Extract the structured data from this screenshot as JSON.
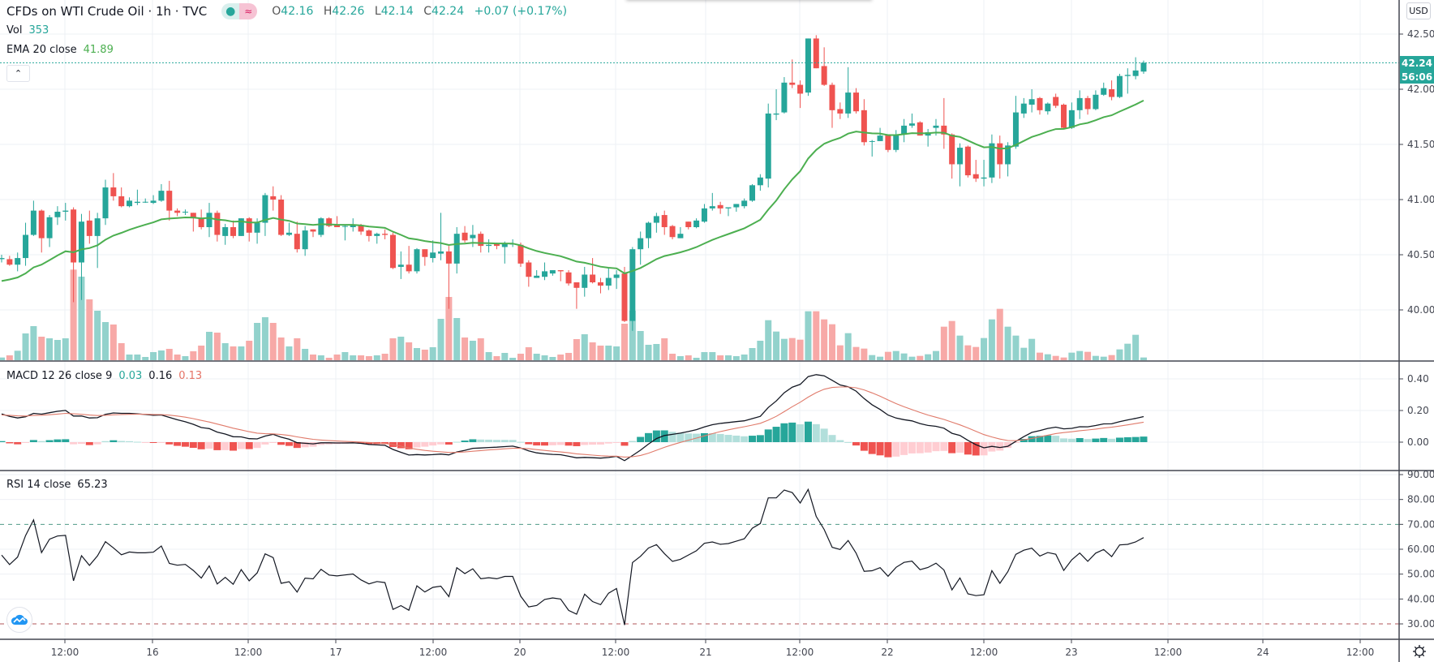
{
  "header": {
    "title": "CFDs on WTI Crude Oil · 1h · TVC",
    "open_label": "O",
    "open": "42.16",
    "high_label": "H",
    "high": "42.26",
    "low_label": "L",
    "low": "42.14",
    "close_label": "C",
    "close": "42.24",
    "change": "+0.07 (+0.17%)"
  },
  "legends": {
    "vol_label": "Vol",
    "vol_value": "353",
    "ema_label": "EMA 20 close",
    "ema_value": "41.89",
    "macd_label": "MACD 12 26 close 9",
    "macd_hist": "0.03",
    "macd_line": "0.16",
    "macd_signal": "0.13",
    "rsi_label": "RSI 14 close",
    "rsi_value": "65.23"
  },
  "price_axis": {
    "currency": "USD",
    "last_price": "42.24",
    "countdown": "56:06"
  },
  "icons": {
    "collapse": "chevron-up-icon",
    "logo": "tradingview-cloud-icon",
    "settings": "gear-icon"
  },
  "colors": {
    "up": "#26a69a",
    "down": "#ef5350",
    "up_vol": "#92d2cc",
    "down_vol": "#f7a9a7",
    "ema": "#4caf50",
    "macd": "#131722",
    "signal": "#e07a6a",
    "rsi": "#131722"
  },
  "chart_data": {
    "type": "candlestick",
    "title": "CFDs on WTI Crude Oil · 1h · TVC",
    "price_ticks": [
      "42.50",
      "42.00",
      "41.50",
      "41.00",
      "40.50",
      "40.00"
    ],
    "macd_ticks": [
      "0.40",
      "0.20",
      "0.00"
    ],
    "rsi_ticks": [
      "90.00",
      "80.00",
      "70.00",
      "60.00",
      "50.00",
      "40.00",
      "30.00"
    ],
    "rsi_bands": [
      70,
      30
    ],
    "time_ticks": [
      "12:00",
      "16",
      "12:00",
      "17",
      "12:00",
      "20",
      "12:00",
      "21",
      "12:00",
      "22",
      "12:00",
      "23",
      "12:00",
      "24",
      "12:00"
    ],
    "ylim": [
      39.73,
      42.81
    ],
    "indicator_seeds": {
      "ema20": 40.24,
      "ema12": 40.44,
      "ema26": 40.25,
      "signal": 0.17,
      "rsi_avg_gain": 0.04,
      "rsi_avg_loss": 0.03
    },
    "candles_ohlcv": [
      [
        40.46,
        40.5,
        40.43,
        40.47,
        350
      ],
      [
        40.46,
        40.49,
        40.4,
        40.41,
        630
      ],
      [
        40.41,
        40.52,
        40.35,
        40.47,
        1225
      ],
      [
        40.47,
        40.79,
        40.4,
        40.68,
        3465
      ],
      [
        40.68,
        40.99,
        40.67,
        40.9,
        4410
      ],
      [
        40.9,
        40.91,
        40.52,
        40.65,
        3045
      ],
      [
        40.65,
        40.86,
        40.57,
        40.84,
        2835
      ],
      [
        40.84,
        40.94,
        40.77,
        40.89,
        2625
      ],
      [
        40.89,
        40.97,
        40.81,
        40.9,
        2835
      ],
      [
        40.91,
        40.93,
        40.07,
        40.43,
        11725
      ],
      [
        40.43,
        40.87,
        40.09,
        40.8,
        10815
      ],
      [
        40.81,
        40.9,
        40.6,
        40.67,
        7875
      ],
      [
        40.67,
        40.88,
        40.38,
        40.83,
        6405
      ],
      [
        40.83,
        41.18,
        40.77,
        41.11,
        4935
      ],
      [
        41.11,
        41.24,
        40.99,
        41.03,
        4620
      ],
      [
        41.03,
        41.11,
        40.93,
        40.94,
        2205
      ],
      [
        40.94,
        41.02,
        40.93,
        40.99,
        735
      ],
      [
        40.97,
        41.09,
        40.95,
        40.98,
        735
      ],
      [
        40.98,
        41.01,
        40.97,
        40.98,
        420
      ],
      [
        40.97,
        41.04,
        40.96,
        40.99,
        1050
      ],
      [
        40.99,
        41.14,
        40.98,
        41.08,
        1260
      ],
      [
        41.08,
        41.17,
        40.81,
        40.9,
        1470
      ],
      [
        40.9,
        40.92,
        40.85,
        40.88,
        735
      ],
      [
        40.89,
        40.91,
        40.86,
        40.89,
        525
      ],
      [
        40.88,
        40.88,
        40.71,
        40.83,
        1155
      ],
      [
        40.83,
        40.91,
        40.73,
        40.75,
        1890
      ],
      [
        40.75,
        40.97,
        40.66,
        40.88,
        3675
      ],
      [
        40.88,
        40.9,
        40.62,
        40.68,
        3570
      ],
      [
        40.67,
        40.78,
        40.59,
        40.75,
        2205
      ],
      [
        40.75,
        40.81,
        40.65,
        40.67,
        1785
      ],
      [
        40.67,
        40.83,
        40.67,
        40.83,
        1785
      ],
      [
        40.83,
        40.84,
        40.62,
        40.7,
        2520
      ],
      [
        40.7,
        40.83,
        40.6,
        40.79,
        4830
      ],
      [
        40.79,
        41.06,
        40.67,
        41.04,
        5565
      ],
      [
        41.03,
        41.12,
        40.9,
        41.0,
        4830
      ],
      [
        41.0,
        41.04,
        40.67,
        40.68,
        2940
      ],
      [
        40.68,
        40.79,
        40.67,
        40.7,
        1785
      ],
      [
        40.69,
        40.8,
        40.52,
        40.55,
        2835
      ],
      [
        40.55,
        40.76,
        40.49,
        40.72,
        1470
      ],
      [
        40.73,
        40.73,
        40.66,
        40.71,
        735
      ],
      [
        40.68,
        40.84,
        40.66,
        40.83,
        630
      ],
      [
        40.83,
        40.84,
        40.75,
        40.76,
        315
      ],
      [
        40.77,
        40.85,
        40.75,
        40.75,
        735
      ],
      [
        40.76,
        40.77,
        40.63,
        40.76,
        1050
      ],
      [
        40.75,
        40.83,
        40.71,
        40.77,
        630
      ],
      [
        40.77,
        40.78,
        40.68,
        40.71,
        630
      ],
      [
        40.72,
        40.73,
        40.62,
        40.67,
        525
      ],
      [
        40.67,
        40.7,
        40.6,
        40.69,
        630
      ],
      [
        40.69,
        40.73,
        40.64,
        40.68,
        840
      ],
      [
        40.68,
        40.7,
        40.37,
        40.38,
        2835
      ],
      [
        40.39,
        40.53,
        40.28,
        40.41,
        3045
      ],
      [
        40.41,
        40.58,
        40.33,
        40.35,
        2310
      ],
      [
        40.35,
        40.56,
        40.33,
        40.55,
        1575
      ],
      [
        40.55,
        40.55,
        40.4,
        40.48,
        1365
      ],
      [
        40.47,
        40.63,
        40.43,
        40.52,
        1680
      ],
      [
        40.51,
        40.88,
        40.45,
        40.53,
        5355
      ],
      [
        40.53,
        40.58,
        40.01,
        40.42,
        8190
      ],
      [
        40.42,
        40.75,
        40.33,
        40.69,
        5460
      ],
      [
        40.7,
        40.76,
        40.61,
        40.63,
        2940
      ],
      [
        40.65,
        40.77,
        40.57,
        40.68,
        2520
      ],
      [
        40.69,
        40.71,
        40.52,
        40.58,
        2835
      ],
      [
        40.58,
        40.64,
        40.52,
        40.59,
        1050
      ],
      [
        40.6,
        40.61,
        40.55,
        40.58,
        525
      ],
      [
        40.57,
        40.62,
        40.42,
        40.6,
        945
      ],
      [
        40.6,
        40.64,
        40.57,
        40.6,
        315
      ],
      [
        40.59,
        40.61,
        40.39,
        40.42,
        840
      ],
      [
        40.43,
        40.45,
        40.21,
        40.3,
        1680
      ],
      [
        40.29,
        40.36,
        40.29,
        40.31,
        840
      ],
      [
        40.3,
        40.43,
        40.27,
        40.35,
        630
      ],
      [
        40.33,
        40.36,
        40.31,
        40.36,
        420
      ],
      [
        40.36,
        40.36,
        40.26,
        40.35,
        735
      ],
      [
        40.34,
        40.36,
        40.22,
        40.24,
        945
      ],
      [
        40.25,
        40.25,
        40.01,
        40.2,
        2730
      ],
      [
        40.2,
        40.39,
        40.12,
        40.32,
        3360
      ],
      [
        40.32,
        40.47,
        40.24,
        40.25,
        2310
      ],
      [
        40.25,
        40.29,
        40.15,
        40.22,
        1890
      ],
      [
        40.22,
        40.38,
        40.18,
        40.29,
        1890
      ],
      [
        40.29,
        40.36,
        40.19,
        40.32,
        1785
      ],
      [
        40.33,
        40.39,
        39.89,
        39.9,
        4725
      ],
      [
        39.9,
        40.57,
        39.81,
        40.55,
        6405
      ],
      [
        40.55,
        40.71,
        40.41,
        40.65,
        3780
      ],
      [
        40.65,
        40.8,
        40.56,
        40.79,
        1995
      ],
      [
        40.79,
        40.88,
        40.7,
        40.85,
        2100
      ],
      [
        40.86,
        40.9,
        40.68,
        40.75,
        2835
      ],
      [
        40.76,
        40.77,
        40.64,
        40.66,
        840
      ],
      [
        40.65,
        40.75,
        40.65,
        40.69,
        525
      ],
      [
        40.8,
        40.8,
        40.73,
        40.75,
        630
      ],
      [
        40.75,
        40.83,
        40.74,
        40.81,
        315
      ],
      [
        40.8,
        40.96,
        40.79,
        40.92,
        1050
      ],
      [
        40.92,
        41.06,
        40.9,
        40.94,
        1050
      ],
      [
        40.95,
        40.98,
        40.87,
        40.92,
        630
      ],
      [
        40.92,
        40.93,
        40.85,
        40.93,
        630
      ],
      [
        40.93,
        40.96,
        40.89,
        40.96,
        525
      ],
      [
        40.94,
        41.01,
        40.92,
        40.99,
        735
      ],
      [
        40.99,
        41.14,
        40.98,
        41.13,
        1575
      ],
      [
        41.13,
        41.23,
        41.08,
        41.2,
        2520
      ],
      [
        41.19,
        41.87,
        41.11,
        41.78,
        5180
      ],
      [
        41.77,
        42.0,
        41.72,
        41.78,
        3710
      ],
      [
        41.79,
        42.11,
        41.78,
        42.06,
        2765
      ],
      [
        42.06,
        42.27,
        42.01,
        42.04,
        2870
      ],
      [
        42.04,
        42.08,
        41.83,
        41.96,
        2660
      ],
      [
        41.97,
        42.46,
        41.94,
        42.46,
        6335
      ],
      [
        42.46,
        42.49,
        42.19,
        42.19,
        6335
      ],
      [
        42.21,
        42.38,
        42.03,
        42.04,
        5285
      ],
      [
        42.04,
        42.06,
        41.65,
        41.81,
        4655
      ],
      [
        41.82,
        41.88,
        41.73,
        41.78,
        1925
      ],
      [
        41.78,
        42.2,
        41.74,
        41.97,
        3500
      ],
      [
        41.97,
        42.01,
        41.78,
        41.8,
        1715
      ],
      [
        41.81,
        41.91,
        41.49,
        41.52,
        1505
      ],
      [
        41.53,
        41.54,
        41.39,
        41.53,
        665
      ],
      [
        41.53,
        41.65,
        41.53,
        41.58,
        455
      ],
      [
        41.59,
        41.59,
        41.43,
        41.45,
        1085
      ],
      [
        41.45,
        41.63,
        41.43,
        41.59,
        1190
      ],
      [
        41.59,
        41.73,
        41.52,
        41.67,
        875
      ],
      [
        41.67,
        41.78,
        41.65,
        41.69,
        455
      ],
      [
        41.7,
        41.71,
        41.58,
        41.58,
        560
      ],
      [
        41.58,
        41.64,
        41.48,
        41.61,
        770
      ],
      [
        41.65,
        41.73,
        41.58,
        41.67,
        1190
      ],
      [
        41.67,
        41.92,
        41.46,
        41.59,
        4340
      ],
      [
        41.59,
        41.6,
        41.19,
        41.32,
        5075
      ],
      [
        41.32,
        41.51,
        41.12,
        41.47,
        3185
      ],
      [
        41.48,
        41.49,
        41.2,
        41.22,
        1925
      ],
      [
        41.23,
        41.36,
        41.16,
        41.19,
        1715
      ],
      [
        41.19,
        41.36,
        41.12,
        41.2,
        2870
      ],
      [
        41.2,
        41.59,
        41.15,
        41.51,
        5285
      ],
      [
        41.51,
        41.58,
        41.19,
        41.32,
        6650
      ],
      [
        41.32,
        41.52,
        41.21,
        41.49,
        4340
      ],
      [
        41.48,
        41.94,
        41.46,
        41.79,
        3185
      ],
      [
        41.78,
        41.92,
        41.74,
        41.87,
        1610
      ],
      [
        41.86,
        42.0,
        41.79,
        41.91,
        2765
      ],
      [
        41.92,
        41.93,
        41.77,
        41.81,
        980
      ],
      [
        41.8,
        41.88,
        41.77,
        41.87,
        770
      ],
      [
        41.93,
        41.96,
        41.83,
        41.85,
        560
      ],
      [
        41.86,
        41.87,
        41.64,
        41.65,
        350
      ],
      [
        41.65,
        41.88,
        41.64,
        41.81,
        980
      ],
      [
        41.81,
        41.99,
        41.73,
        41.92,
        1190
      ],
      [
        41.92,
        41.94,
        41.77,
        41.82,
        1085
      ],
      [
        41.82,
        41.99,
        41.81,
        41.95,
        560
      ],
      [
        41.95,
        42.06,
        41.94,
        42.01,
        455
      ],
      [
        42.0,
        42.08,
        41.9,
        41.93,
        665
      ],
      [
        41.93,
        42.14,
        41.92,
        42.12,
        1400
      ],
      [
        42.12,
        42.19,
        41.96,
        42.13,
        2135
      ],
      [
        42.12,
        42.29,
        42.09,
        42.17,
        3290
      ],
      [
        42.16,
        42.26,
        42.14,
        42.24,
        353
      ]
    ]
  }
}
